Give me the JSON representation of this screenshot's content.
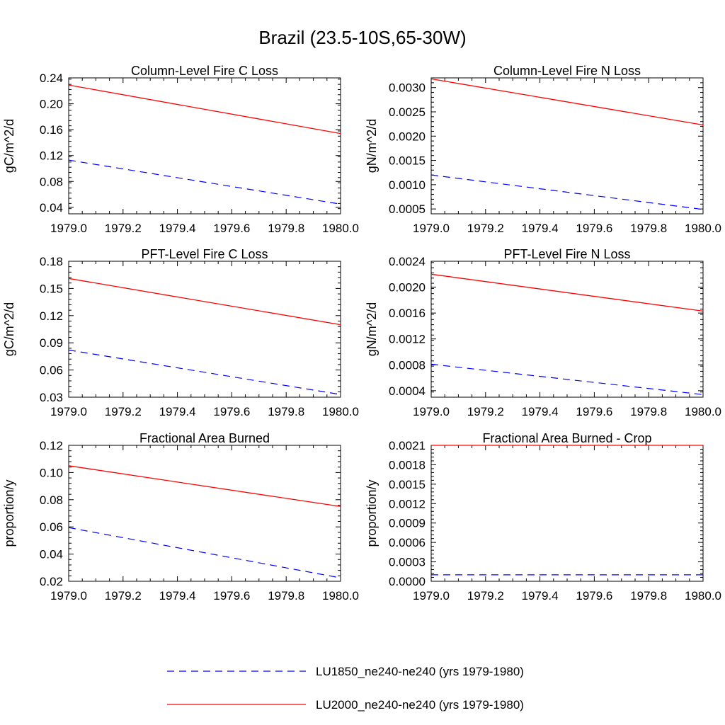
{
  "figure": {
    "title": "Brazil (23.5-10S,65-30W)"
  },
  "legend": [
    {
      "label": "LU1850_ne240-ne240 (yrs 1979-1980)",
      "color": "#0000ff",
      "dash": "dashed"
    },
    {
      "label": "LU2000_ne240-ne240 (yrs 1979-1980)",
      "color": "#ff0000",
      "dash": "solid"
    }
  ],
  "chart_data": [
    {
      "type": "line",
      "title": "Column-Level Fire C Loss",
      "ylabel": "gC/m^2/d",
      "xlim": [
        1979.0,
        1980.0
      ],
      "ylim": [
        0.03,
        0.24
      ],
      "xticks": [
        "1979.0",
        "1979.2",
        "1979.4",
        "1979.6",
        "1979.8",
        "1980.0"
      ],
      "yticks": [
        "0.04",
        "0.08",
        "0.12",
        "0.16",
        "0.20",
        "0.24"
      ],
      "series": [
        {
          "name": "LU1850_ne240-ne240 (yrs 1979-1980)",
          "x": [
            1979.0,
            1980.0
          ],
          "y": [
            0.113,
            0.045
          ]
        },
        {
          "name": "LU2000_ne240-ne240 (yrs 1979-1980)",
          "x": [
            1979.0,
            1980.0
          ],
          "y": [
            0.229,
            0.154
          ]
        }
      ]
    },
    {
      "type": "line",
      "title": "Column-Level Fire N Loss",
      "ylabel": "gN/m^2/d",
      "xlim": [
        1979.0,
        1980.0
      ],
      "ylim": [
        0.0004,
        0.0032
      ],
      "xticks": [
        "1979.0",
        "1979.2",
        "1979.4",
        "1979.6",
        "1979.8",
        "1980.0"
      ],
      "yticks": [
        "0.0005",
        "0.0010",
        "0.0015",
        "0.0020",
        "0.0025",
        "0.0030"
      ],
      "series": [
        {
          "name": "LU1850_ne240-ne240 (yrs 1979-1980)",
          "x": [
            1979.0,
            1980.0
          ],
          "y": [
            0.0012,
            0.00049
          ]
        },
        {
          "name": "LU2000_ne240-ne240 (yrs 1979-1980)",
          "x": [
            1979.0,
            1980.0
          ],
          "y": [
            0.00318,
            0.00223
          ]
        }
      ]
    },
    {
      "type": "line",
      "title": "PFT-Level Fire C Loss",
      "ylabel": "gC/m^2/d",
      "xlim": [
        1979.0,
        1980.0
      ],
      "ylim": [
        0.03,
        0.18
      ],
      "xticks": [
        "1979.0",
        "1979.2",
        "1979.4",
        "1979.6",
        "1979.8",
        "1980.0"
      ],
      "yticks": [
        "0.03",
        "0.06",
        "0.09",
        "0.12",
        "0.15",
        "0.18"
      ],
      "series": [
        {
          "name": "LU1850_ne240-ne240 (yrs 1979-1980)",
          "x": [
            1979.0,
            1980.0
          ],
          "y": [
            0.082,
            0.033
          ]
        },
        {
          "name": "LU2000_ne240-ne240 (yrs 1979-1980)",
          "x": [
            1979.0,
            1980.0
          ],
          "y": [
            0.161,
            0.11
          ]
        }
      ]
    },
    {
      "type": "line",
      "title": "PFT-Level Fire N Loss",
      "ylabel": "gN/m^2/d",
      "xlim": [
        1979.0,
        1980.0
      ],
      "ylim": [
        0.0003,
        0.0024
      ],
      "xticks": [
        "1979.0",
        "1979.2",
        "1979.4",
        "1979.6",
        "1979.8",
        "1980.0"
      ],
      "yticks": [
        "0.0004",
        "0.0008",
        "0.0012",
        "0.0016",
        "0.0020",
        "0.0024"
      ],
      "series": [
        {
          "name": "LU1850_ne240-ne240 (yrs 1979-1980)",
          "x": [
            1979.0,
            1980.0
          ],
          "y": [
            0.00081,
            0.00034
          ]
        },
        {
          "name": "LU2000_ne240-ne240 (yrs 1979-1980)",
          "x": [
            1979.0,
            1980.0
          ],
          "y": [
            0.0022,
            0.00163
          ]
        }
      ]
    },
    {
      "type": "line",
      "title": "Fractional Area Burned",
      "ylabel": "proportion/y",
      "xlim": [
        1979.0,
        1980.0
      ],
      "ylim": [
        0.02,
        0.12
      ],
      "xticks": [
        "1979.0",
        "1979.2",
        "1979.4",
        "1979.6",
        "1979.8",
        "1980.0"
      ],
      "yticks": [
        "0.02",
        "0.04",
        "0.06",
        "0.08",
        "0.10",
        "0.12"
      ],
      "series": [
        {
          "name": "LU1850_ne240-ne240 (yrs 1979-1980)",
          "x": [
            1979.0,
            1980.0
          ],
          "y": [
            0.0595,
            0.0225
          ]
        },
        {
          "name": "LU2000_ne240-ne240 (yrs 1979-1980)",
          "x": [
            1979.0,
            1980.0
          ],
          "y": [
            0.105,
            0.075
          ]
        }
      ]
    },
    {
      "type": "line",
      "title": "Fractional Area Burned - Crop",
      "ylabel": "proportion/y",
      "xlim": [
        1979.0,
        1980.0
      ],
      "ylim": [
        0.0,
        0.0021
      ],
      "xticks": [
        "1979.0",
        "1979.2",
        "1979.4",
        "1979.6",
        "1979.8",
        "1980.0"
      ],
      "yticks": [
        "0.0000",
        "0.0003",
        "0.0006",
        "0.0009",
        "0.0012",
        "0.0015",
        "0.0018",
        "0.0021"
      ],
      "series": [
        {
          "name": "LU1850_ne240-ne240 (yrs 1979-1980)",
          "x": [
            1979.0,
            1980.0
          ],
          "y": [
            0.0001,
            0.0001
          ]
        },
        {
          "name": "LU2000_ne240-ne240 (yrs 1979-1980)",
          "x": [
            1979.0,
            1980.0
          ],
          "y": [
            0.0021,
            0.0021
          ]
        }
      ]
    }
  ]
}
